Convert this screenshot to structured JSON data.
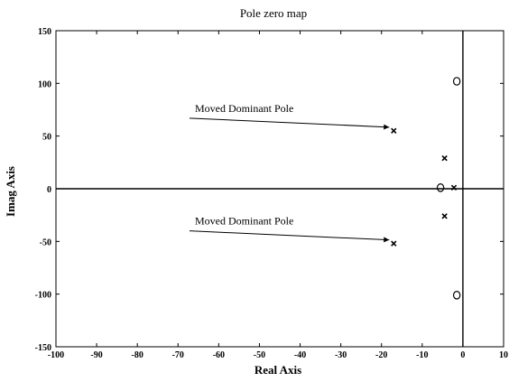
{
  "chart_data": {
    "type": "scatter",
    "title": "Pole zero map",
    "xlabel": "Real Axis",
    "ylabel": "Imag Axis",
    "xlim": [
      -100,
      10
    ],
    "ylim": [
      -150,
      150
    ],
    "x_ticks": [
      -100,
      -90,
      -80,
      -70,
      -60,
      -50,
      -40,
      -30,
      -20,
      -10,
      0,
      10
    ],
    "y_ticks": [
      -150,
      -100,
      -50,
      0,
      50,
      100,
      150
    ],
    "x_tick_labels": [
      "-100",
      "-90",
      "-80",
      "-70",
      "-60",
      "-50",
      "-40",
      "-30",
      "-20",
      "-10",
      "0",
      "10"
    ],
    "y_tick_labels": [
      "-150",
      "-100",
      "-50",
      "0",
      "50",
      "100",
      "150"
    ],
    "grid": false,
    "poles": [
      {
        "x": -17,
        "y": 55
      },
      {
        "x": -17,
        "y": -52
      },
      {
        "x": -4.5,
        "y": 29
      },
      {
        "x": -4.5,
        "y": -26
      },
      {
        "x": -2.2,
        "y": 1
      }
    ],
    "zeros": [
      {
        "x": -1.5,
        "y": 102
      },
      {
        "x": -1.5,
        "y": -101
      },
      {
        "x": -5.5,
        "y": 1
      }
    ],
    "annotations": [
      {
        "text": "Moved Dominant Pole",
        "target_x": -17,
        "target_y": 55
      },
      {
        "text": "Moved Dominant Pole",
        "target_x": -17,
        "target_y": -52
      }
    ]
  }
}
